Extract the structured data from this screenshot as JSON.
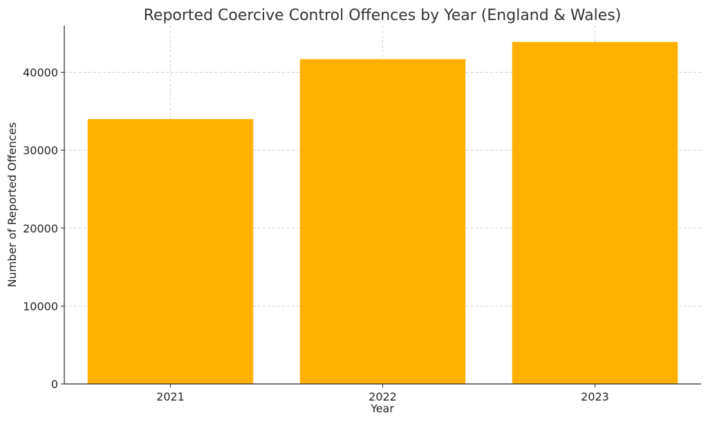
{
  "chart_data": {
    "type": "bar",
    "title": "Reported Coercive Control Offences by Year (England & Wales)",
    "xlabel": "Year",
    "ylabel": "Number of Reported Offences",
    "categories": [
      "2021",
      "2022",
      "2023"
    ],
    "values": [
      34000,
      41700,
      43900
    ],
    "ylim": [
      0,
      46000
    ],
    "yticks": [
      0,
      10000,
      20000,
      30000,
      40000
    ],
    "grid": true,
    "bar_color": "#FFB000"
  }
}
